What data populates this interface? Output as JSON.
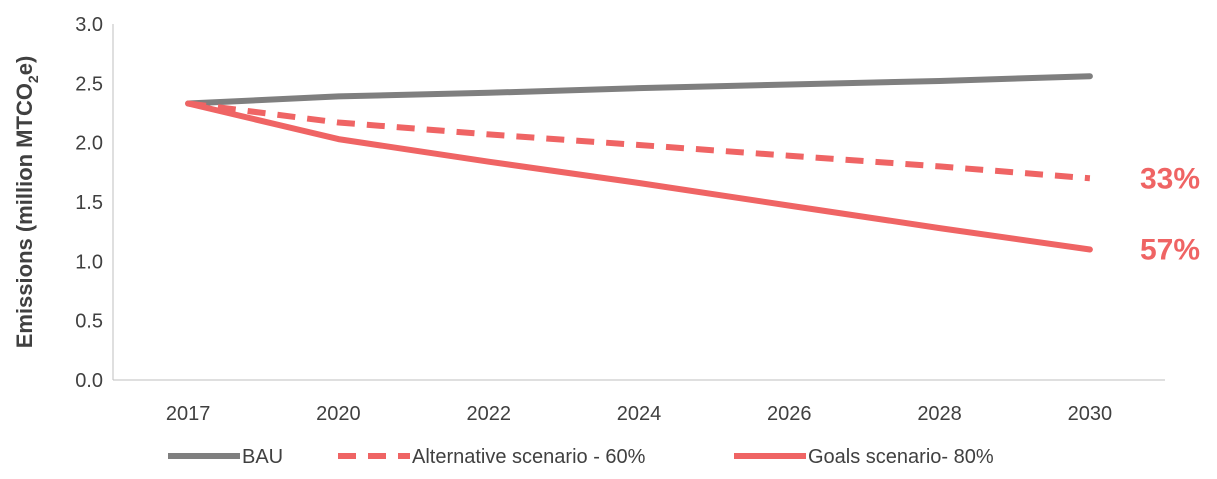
{
  "chart_data": {
    "type": "line",
    "title": "",
    "xlabel": "",
    "ylabel": {
      "prefix": "Emissions (million MTCO",
      "subscript": "2",
      "suffix": "e)"
    },
    "ylim": [
      0,
      3.0
    ],
    "yticks": [
      "0.0",
      "0.5",
      "1.0",
      "1.5",
      "2.0",
      "2.5",
      "3.0"
    ],
    "categories": [
      "2017",
      "2020",
      "2022",
      "2024",
      "2026",
      "2028",
      "2030"
    ],
    "grid": false,
    "legend_position": "bottom",
    "series": [
      {
        "name": "BAU",
        "color": "#7f7f7f",
        "style": "solid",
        "values": [
          2.33,
          2.39,
          2.42,
          2.46,
          2.49,
          2.52,
          2.56
        ]
      },
      {
        "name": "Alternative scenario - 60%",
        "color": "#ef6464",
        "style": "dashed",
        "values": [
          2.33,
          2.17,
          2.07,
          1.98,
          1.89,
          1.8,
          1.7
        ]
      },
      {
        "name": "Goals scenario- 80%",
        "color": "#ef6464",
        "style": "solid",
        "values": [
          2.33,
          2.03,
          1.84,
          1.66,
          1.47,
          1.28,
          1.1
        ]
      }
    ],
    "annotations": [
      {
        "text": "33%",
        "series": "Alternative scenario - 60%",
        "color": "#ef6464"
      },
      {
        "text": "57%",
        "series": "Goals scenario- 80%",
        "color": "#ef6464"
      }
    ]
  }
}
